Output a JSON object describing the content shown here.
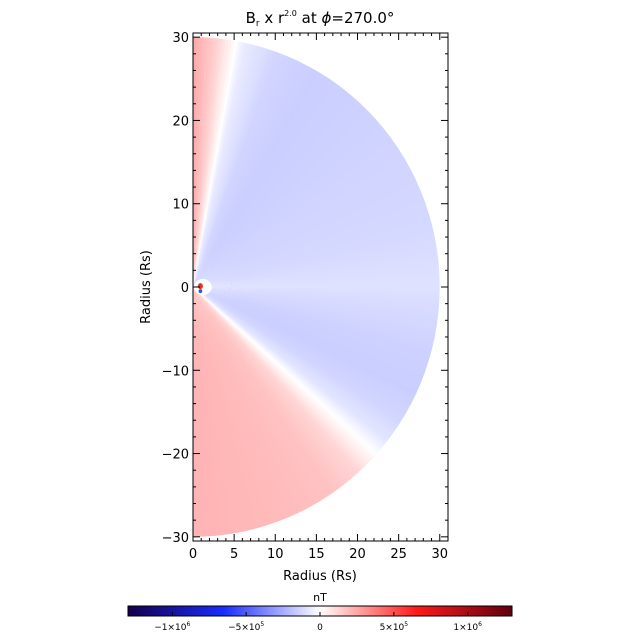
{
  "chart_data": {
    "type": "heatmap",
    "title": {
      "prefix": "B",
      "prefix_sub": "r",
      "mid": " x r",
      "exponent": "2.0",
      "suffix": " at ",
      "phi": "ϕ",
      "phi_value": "=270.0°"
    },
    "xlabel": "Radius (Rs)",
    "ylabel": "Radius (Rs)",
    "xlim": [
      0,
      31
    ],
    "ylim": [
      -30.5,
      30.5
    ],
    "x_ticks": [
      {
        "value": 0,
        "label": "0"
      },
      {
        "value": 5,
        "label": "5"
      },
      {
        "value": 10,
        "label": "10"
      },
      {
        "value": 15,
        "label": "15"
      },
      {
        "value": 20,
        "label": "20"
      },
      {
        "value": 25,
        "label": "25"
      },
      {
        "value": 30,
        "label": "30"
      }
    ],
    "y_ticks": [
      {
        "value": 30,
        "label": "30"
      },
      {
        "value": 20,
        "label": "20"
      },
      {
        "value": 10,
        "label": "10"
      },
      {
        "value": 0,
        "label": "0"
      },
      {
        "value": -10,
        "label": "−10"
      },
      {
        "value": -20,
        "label": "−20"
      },
      {
        "value": -30,
        "label": "−30"
      }
    ],
    "domain_radius": 30,
    "field": {
      "description_of_sectors": "polar angle bands from north pole (theta=0) to south pole (theta=180), value in nT scaled by r^2",
      "theta_deg": [
        0,
        6,
        12,
        20,
        30,
        45,
        60,
        75,
        85,
        90,
        95,
        105,
        115,
        122,
        128,
        133,
        138,
        145,
        155,
        165,
        175,
        180
      ],
      "values": [
        250000,
        120000,
        -60000,
        -130000,
        -150000,
        -140000,
        -130000,
        -120000,
        -100000,
        -90000,
        -110000,
        -140000,
        -150000,
        -130000,
        -80000,
        20000,
        120000,
        170000,
        190000,
        200000,
        210000,
        210000
      ]
    },
    "colorbar": {
      "label": "nT",
      "range": [
        -1300000,
        1300000
      ],
      "stops": [
        "#14004c",
        "#1a2cff",
        "#ffffff",
        "#ff1a1a",
        "#600010"
      ],
      "tick_labels": [
        {
          "value": -1000000,
          "base": "−1×10",
          "exp": "6"
        },
        {
          "value": -500000,
          "base": "−5×10",
          "exp": "5"
        },
        {
          "value": 0,
          "base": "0",
          "exp": ""
        },
        {
          "value": 500000,
          "base": "5×10",
          "exp": "5"
        },
        {
          "value": 1000000,
          "base": "1×10",
          "exp": "6"
        }
      ]
    }
  }
}
